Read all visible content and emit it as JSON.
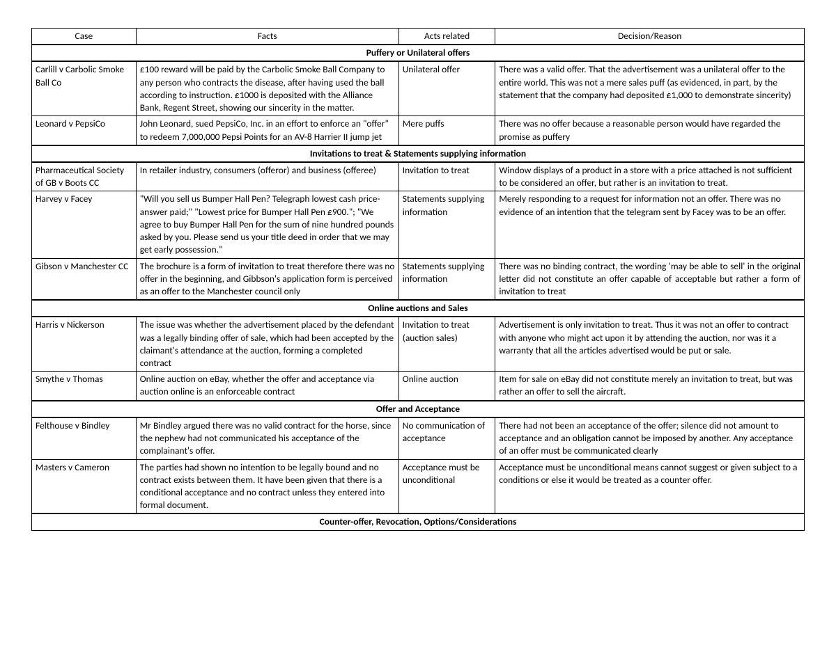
{
  "columns": {
    "case": "Case",
    "facts": "Facts",
    "acts": "Acts related",
    "decision": "Decision/Reason"
  },
  "sections": [
    {
      "title": "Puffery or Unilateral offers",
      "rows": [
        {
          "case": "Carlill v Carbolic Smoke Ball Co",
          "facts": "£100 reward will be paid by the Carbolic Smoke Ball Company to any person who contracts the disease, after having used the ball according to instruction. £1000 is deposited with the Alliance Bank, Regent Street, showing our sincerity in the matter.",
          "acts": "Unilateral offer",
          "decision": "There was a valid offer. That the advertisement was a unilateral offer to the entire world. This was not a mere sales puff (as evidenced, in part, by the statement that the company had deposited £1,000 to demonstrate sincerity)"
        },
        {
          "case": "Leonard v PepsiCo",
          "facts": "John Leonard, sued PepsiCo, Inc. in an effort to enforce an \"offer\" to redeem 7,000,000 Pepsi Points for an AV-8 Harrier II jump jet",
          "acts": "Mere puffs",
          "decision": "There was no offer because a reasonable person would have regarded the promise as puffery"
        }
      ]
    },
    {
      "title": "Invitations to treat & Statements supplying information",
      "rows": [
        {
          "case": "Pharmaceutical Society of GB v Boots CC",
          "facts": "In retailer industry, consumers (offeror) and business (offeree)",
          "acts": "Invitation to treat",
          "decision": "Window displays of a product in a store with a price attached is not sufficient to be considered an offer, but rather is an invitation to treat."
        },
        {
          "case": "Harvey v Facey",
          "facts": "\"Will you sell us Bumper Hall Pen? Telegraph lowest cash price-answer paid;\" \"Lowest price for Bumper Hall Pen £900.\"; \"We agree to buy Bumper Hall Pen for the sum of nine hundred pounds asked by you. Please send us your title deed in order that we may get early possession.\"",
          "acts": "Statements supplying information",
          "decision": "Merely responding to a request for information not an offer. There was no evidence of an intention that the telegram sent by Facey was to be an offer."
        },
        {
          "case": "Gibson v Manchester CC",
          "facts": "The brochure is a form of invitation to treat therefore there was no offer in the beginning, and Gibbson's application form is perceived as an offer to the Manchester council only",
          "acts": "Statements supplying information",
          "decision": "There was no binding contract, the wording 'may be able to sell' in the original letter did not constitute an offer capable of acceptable but rather a form of invitation to treat",
          "decision_justify": true
        }
      ]
    },
    {
      "title": "Online auctions and Sales",
      "rows": [
        {
          "case": "Harris v Nickerson",
          "facts": "The issue was whether the advertisement placed by the defendant was a legally binding offer of sale, which had been accepted by the claimant's attendance at the auction, forming a completed contract",
          "acts": "Invitation to treat (auction sales)",
          "decision": "Advertisement is only invitation to treat. Thus it was not an offer to contract with anyone who might act upon it by attending the auction, nor was it a warranty that all the articles advertised would be put or sale."
        },
        {
          "case": "Smythe v Thomas",
          "facts": "Online auction on eBay, whether the offer and acceptance via auction online is an enforceable contract",
          "acts": "Online auction",
          "decision": "Item for sale on eBay did not constitute merely an invitation to treat, but was rather an offer to sell the aircraft."
        }
      ]
    },
    {
      "title": "Offer and Acceptance",
      "rows": [
        {
          "case": "Felthouse v Bindley",
          "facts": "Mr Bindley argued there was no valid contract for the horse, since the nephew had not communicated his acceptance of the complainant's offer.",
          "acts": "No communication of acceptance",
          "decision": "There had not been an acceptance of the offer; silence did not amount to acceptance and an obligation cannot be imposed by another. Any acceptance of an offer must be communicated clearly"
        },
        {
          "case": "Masters v Cameron",
          "facts": "The parties had shown no intention to be legally bound and no contract exists between them. It have been given that there is a conditional acceptance and no contract unless they entered into formal document.",
          "acts": "Acceptance must be unconditional",
          "decision": "Acceptance must be unconditional means cannot suggest or given subject to a conditions or else it would be treated as a counter offer."
        }
      ]
    }
  ],
  "trailing_section": "Counter-offer, Revocation, Options/Considerations"
}
